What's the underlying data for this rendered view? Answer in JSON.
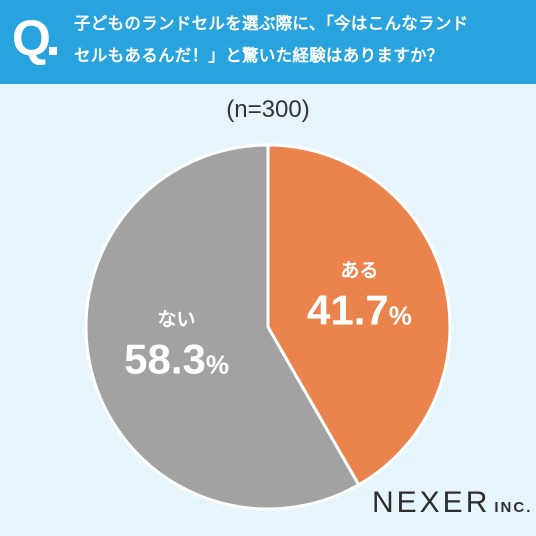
{
  "header": {
    "q_label": "Q",
    "question_line1": "子どものランドセルを選ぶ際に、「今はこんなランド",
    "question_line2": "セルもあるんだ！」と驚いた経験はありますか？"
  },
  "sample_note": "(n=300)",
  "logo": {
    "brand": "NEXER",
    "suffix": "INC."
  },
  "colors": {
    "header": "#29a3dd",
    "background": "#e6f4fb",
    "aru": "#ea844c",
    "nai": "#a2a2a2"
  },
  "chart_data": {
    "type": "pie",
    "title": "",
    "slices": [
      {
        "label": "ある",
        "value": 41.7,
        "value_text": "41.7",
        "unit": "%",
        "color": "#ea844c"
      },
      {
        "label": "ない",
        "value": 58.3,
        "value_text": "58.3",
        "unit": "%",
        "color": "#a2a2a2"
      }
    ]
  }
}
